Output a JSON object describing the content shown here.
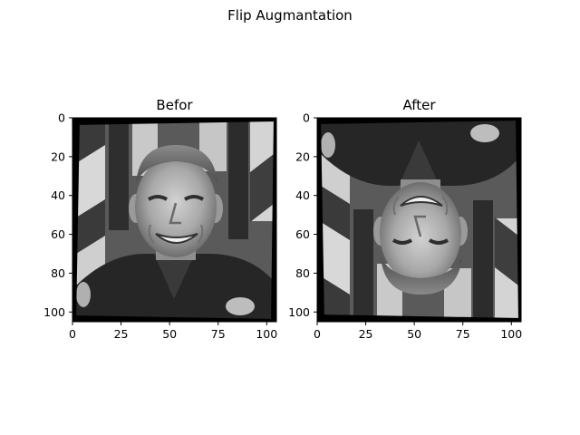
{
  "figure": {
    "suptitle": "Flip Augmantation"
  },
  "chart_data": [
    {
      "type": "image",
      "title": "Befor",
      "content": "grayscale face photo, upright",
      "xlim": [
        0,
        105
      ],
      "ylim": [
        0,
        105
      ],
      "y_inverted": true,
      "xticks": [
        0,
        25,
        50,
        75,
        100
      ],
      "yticks": [
        0,
        20,
        40,
        60,
        80,
        100
      ],
      "colormap": "gray"
    },
    {
      "type": "image",
      "title": "After",
      "content": "same face photo flipped vertically (upside down)",
      "xlim": [
        0,
        105
      ],
      "ylim": [
        0,
        105
      ],
      "y_inverted": true,
      "xticks": [
        0,
        25,
        50,
        75,
        100
      ],
      "yticks": [
        0,
        20,
        40,
        60,
        80,
        100
      ],
      "colormap": "gray"
    }
  ]
}
